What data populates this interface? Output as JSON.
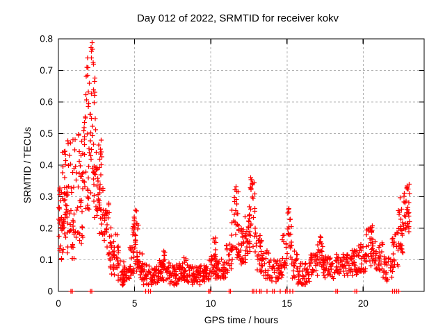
{
  "figure": {
    "background": "#ffffff",
    "text_color": "#000000",
    "border_color": "#000000",
    "grid_color": "#b0b0b0",
    "marker_color": "#ff0000"
  },
  "chart_data": {
    "type": "scatter",
    "title": "Day 012 of 2022, SRMTID for receiver kokv",
    "xlabel": "GPS time / hours",
    "ylabel": "SRMTID / TECUs",
    "xlim": [
      0,
      24
    ],
    "ylim": [
      0,
      0.8
    ],
    "xticks": [
      0,
      5,
      10,
      15,
      20
    ],
    "xtick_labels": [
      "0",
      "5",
      "10",
      "15",
      "20"
    ],
    "yticks": [
      0,
      0.1,
      0.2,
      0.3,
      0.4,
      0.5,
      0.6,
      0.7,
      0.8
    ],
    "ytick_labels": [
      "0",
      "0.1",
      "0.2",
      "0.3",
      "0.4",
      "0.5",
      "0.6",
      "0.7",
      "0.8"
    ],
    "grid": true,
    "grid_style": "dashed",
    "legend": "none",
    "marker": "plus",
    "marker_color": "#ff0000",
    "notable_peaks": [
      {
        "x": 0.6,
        "y": 0.5
      },
      {
        "x": 1.9,
        "y": 0.74
      },
      {
        "x": 2.3,
        "y": 0.79
      },
      {
        "x": 5.0,
        "y": 0.26
      },
      {
        "x": 10.3,
        "y": 0.17
      },
      {
        "x": 11.65,
        "y": 0.33
      },
      {
        "x": 12.7,
        "y": 0.37
      },
      {
        "x": 15.1,
        "y": 0.285
      },
      {
        "x": 17.15,
        "y": 0.17
      },
      {
        "x": 20.5,
        "y": 0.21
      },
      {
        "x": 22.9,
        "y": 0.35
      }
    ],
    "baseline_level": {
      "from_hour": 4,
      "to_hour": 22,
      "y_range": [
        0.02,
        0.1
      ]
    },
    "series": [
      {
        "name": "SRMTID",
        "bin_format": [
          "x_start_hours",
          "x_end_hours",
          "point_count",
          "y_min_TECUs",
          "y_max_TECUs"
        ],
        "density_bins": [
          [
            0.0,
            0.62,
            46,
            0.19,
            0.33
          ],
          [
            0.0,
            0.5,
            10,
            0.1,
            0.19
          ],
          [
            0.15,
            0.7,
            10,
            0.33,
            0.45
          ],
          [
            0.45,
            0.8,
            6,
            0.4,
            0.5
          ],
          [
            0.55,
            1.2,
            26,
            0.1,
            0.26
          ],
          [
            0.8,
            1.3,
            8,
            0.28,
            0.42
          ],
          [
            0.9,
            1.1,
            3,
            0.44,
            0.49
          ],
          [
            1.2,
            1.65,
            22,
            0.15,
            0.38
          ],
          [
            1.3,
            1.6,
            8,
            0.38,
            0.52
          ],
          [
            1.6,
            2.05,
            24,
            0.25,
            0.5
          ],
          [
            1.65,
            2.05,
            16,
            0.5,
            0.74
          ],
          [
            2.05,
            2.5,
            20,
            0.3,
            0.55
          ],
          [
            2.05,
            2.45,
            16,
            0.55,
            0.79
          ],
          [
            2.3,
            2.7,
            14,
            0.22,
            0.42
          ],
          [
            2.45,
            2.85,
            20,
            0.24,
            0.5
          ],
          [
            2.6,
            3.05,
            22,
            0.16,
            0.34
          ],
          [
            3.0,
            3.35,
            20,
            0.1,
            0.28
          ],
          [
            3.3,
            3.65,
            20,
            0.05,
            0.22
          ],
          [
            3.55,
            3.95,
            22,
            0.02,
            0.19
          ],
          [
            3.9,
            4.35,
            26,
            0.02,
            0.1
          ],
          [
            4.3,
            4.75,
            24,
            0.03,
            0.08
          ],
          [
            4.7,
            4.95,
            12,
            0.05,
            0.14
          ],
          [
            4.85,
            5.25,
            30,
            0.06,
            0.22
          ],
          [
            4.95,
            5.15,
            6,
            0.2,
            0.26
          ],
          [
            5.15,
            5.5,
            18,
            0.04,
            0.13
          ],
          [
            5.45,
            6.0,
            30,
            0.02,
            0.09
          ],
          [
            6.0,
            6.6,
            36,
            0.02,
            0.08
          ],
          [
            6.6,
            7.1,
            30,
            0.03,
            0.1
          ],
          [
            6.85,
            7.05,
            4,
            0.1,
            0.13
          ],
          [
            7.1,
            7.8,
            40,
            0.02,
            0.09
          ],
          [
            7.8,
            8.5,
            40,
            0.03,
            0.09
          ],
          [
            8.2,
            8.4,
            4,
            0.09,
            0.11
          ],
          [
            8.5,
            9.3,
            46,
            0.02,
            0.08
          ],
          [
            9.3,
            9.9,
            34,
            0.03,
            0.09
          ],
          [
            9.9,
            10.4,
            28,
            0.04,
            0.12
          ],
          [
            10.15,
            10.35,
            5,
            0.12,
            0.17
          ],
          [
            10.4,
            11.0,
            32,
            0.04,
            0.11
          ],
          [
            11.0,
            11.4,
            22,
            0.06,
            0.17
          ],
          [
            11.35,
            11.85,
            26,
            0.1,
            0.26
          ],
          [
            11.5,
            11.8,
            8,
            0.26,
            0.335
          ],
          [
            11.85,
            12.3,
            26,
            0.08,
            0.22
          ],
          [
            12.25,
            12.55,
            18,
            0.1,
            0.26
          ],
          [
            12.5,
            12.95,
            26,
            0.12,
            0.33
          ],
          [
            12.6,
            12.85,
            8,
            0.32,
            0.37
          ],
          [
            12.95,
            13.35,
            22,
            0.06,
            0.18
          ],
          [
            13.3,
            13.9,
            28,
            0.04,
            0.13
          ],
          [
            13.9,
            14.7,
            40,
            0.03,
            0.1
          ],
          [
            14.7,
            15.0,
            16,
            0.06,
            0.18
          ],
          [
            15.0,
            15.3,
            16,
            0.08,
            0.24
          ],
          [
            15.05,
            15.2,
            4,
            0.24,
            0.285
          ],
          [
            15.3,
            15.7,
            20,
            0.04,
            0.13
          ],
          [
            15.7,
            16.5,
            42,
            0.02,
            0.09
          ],
          [
            16.5,
            17.0,
            28,
            0.05,
            0.12
          ],
          [
            17.0,
            17.35,
            18,
            0.07,
            0.16
          ],
          [
            17.05,
            17.25,
            3,
            0.15,
            0.175
          ],
          [
            17.35,
            18.1,
            40,
            0.04,
            0.11
          ],
          [
            18.1,
            19.0,
            48,
            0.05,
            0.12
          ],
          [
            19.0,
            19.7,
            38,
            0.05,
            0.13
          ],
          [
            19.7,
            20.2,
            28,
            0.06,
            0.15
          ],
          [
            20.2,
            20.8,
            32,
            0.08,
            0.2
          ],
          [
            20.35,
            20.65,
            6,
            0.19,
            0.215
          ],
          [
            20.8,
            21.3,
            26,
            0.06,
            0.16
          ],
          [
            21.3,
            21.9,
            26,
            0.03,
            0.11
          ],
          [
            21.85,
            22.3,
            22,
            0.06,
            0.2
          ],
          [
            22.3,
            22.65,
            24,
            0.12,
            0.3
          ],
          [
            22.65,
            23.05,
            26,
            0.18,
            0.33
          ],
          [
            22.85,
            23.05,
            6,
            0.3,
            0.35
          ]
        ],
        "zero_value_points_x": [
          0.82,
          0.92,
          2.1,
          2.2,
          5.72,
          5.9,
          6.05,
          9.85,
          9.95,
          11.2,
          11.3,
          12.72,
          12.82,
          12.97,
          13.2,
          13.3,
          13.68,
          14.05,
          14.17,
          14.55,
          14.9,
          15.02,
          15.2,
          15.38,
          18.2,
          18.32,
          19.45,
          19.57,
          21.93,
          22.05,
          22.2,
          22.33
        ]
      }
    ]
  }
}
